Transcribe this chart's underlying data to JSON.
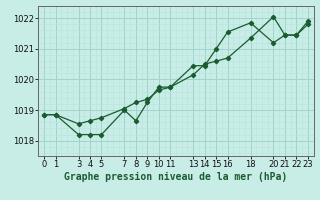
{
  "title": "Graphe pression niveau de la mer (hPa)",
  "background_color": "#c8ece6",
  "grid_major_color": "#a0d4cc",
  "grid_minor_color": "#b8e4de",
  "line_color": "#1a5c30",
  "marker_color": "#1a5c30",
  "ylim": [
    1017.5,
    1022.4
  ],
  "yticks": [
    1018,
    1019,
    1020,
    1021,
    1022
  ],
  "xlim": [
    -0.5,
    23.5
  ],
  "xticks": [
    0,
    1,
    3,
    4,
    5,
    7,
    8,
    9,
    10,
    11,
    13,
    14,
    15,
    16,
    18,
    20,
    21,
    22,
    23
  ],
  "series1_x": [
    0,
    1,
    3,
    4,
    5,
    7,
    8,
    9,
    10,
    11,
    13,
    14,
    15,
    16,
    18,
    20,
    21,
    22,
    23
  ],
  "series1_y": [
    1018.85,
    1018.85,
    1018.2,
    1018.2,
    1018.2,
    1019.0,
    1018.65,
    1019.25,
    1019.75,
    1019.75,
    1020.45,
    1020.45,
    1021.0,
    1021.55,
    1021.85,
    1021.2,
    1021.45,
    1021.45,
    1021.8
  ],
  "series2_x": [
    0,
    1,
    3,
    4,
    5,
    7,
    8,
    9,
    10,
    11,
    13,
    14,
    15,
    16,
    18,
    20,
    21,
    22,
    23
  ],
  "series2_y": [
    1018.85,
    1018.85,
    1018.55,
    1018.65,
    1018.75,
    1019.05,
    1019.25,
    1019.35,
    1019.65,
    1019.75,
    1020.15,
    1020.5,
    1020.6,
    1020.7,
    1021.35,
    1022.05,
    1021.45,
    1021.45,
    1021.9
  ],
  "tick_fontsize": 6,
  "xlabel_fontsize": 7,
  "linewidth": 0.9,
  "markersize": 2.2
}
